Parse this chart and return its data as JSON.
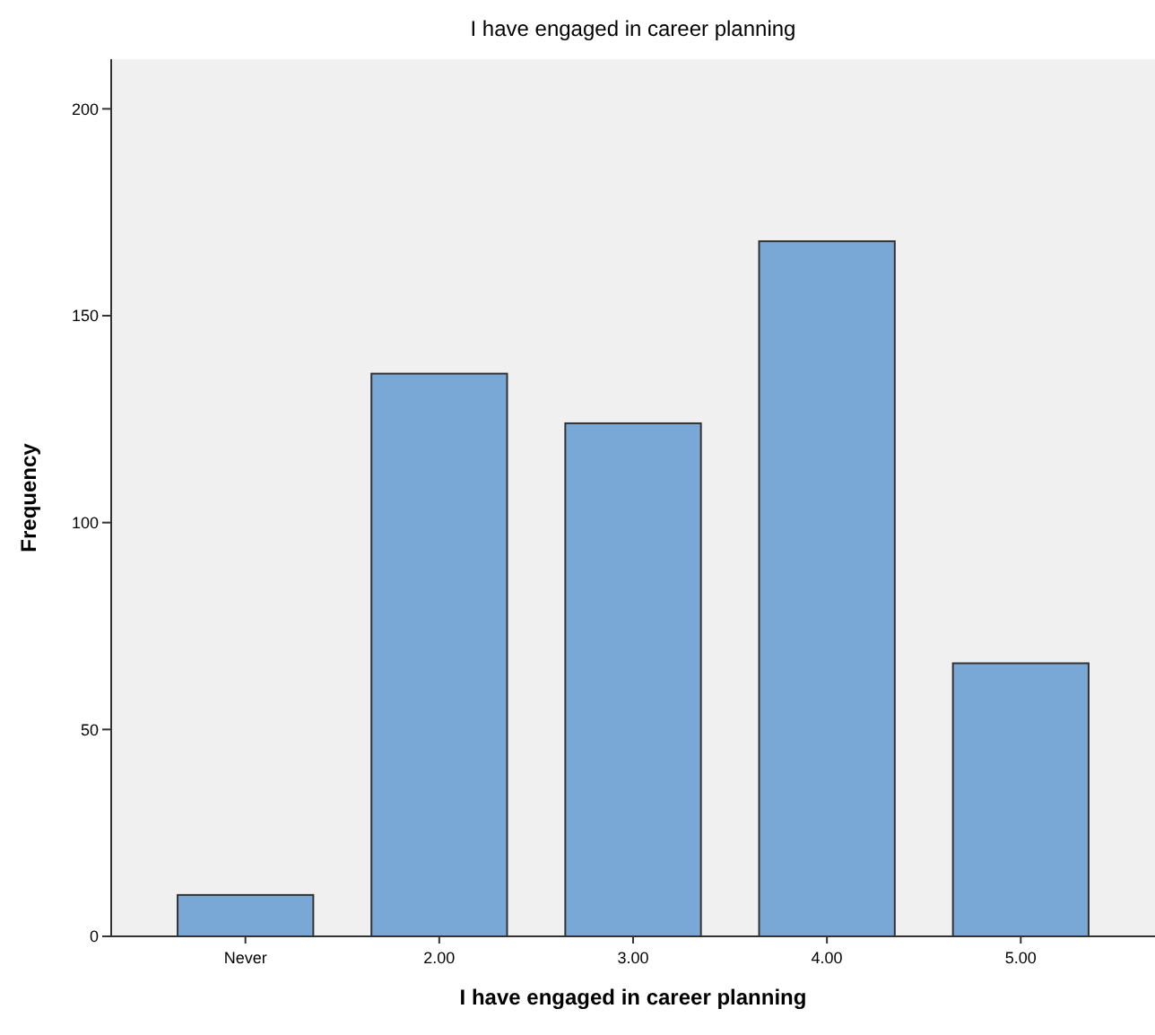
{
  "chart_data": {
    "type": "bar",
    "title": "I have engaged in career planning",
    "xlabel": "I have engaged in career planning",
    "ylabel": "Frequency",
    "categories": [
      "Never",
      "2.00",
      "3.00",
      "4.00",
      "5.00"
    ],
    "values": [
      10,
      136,
      124,
      168,
      66
    ],
    "color": "#79a8d6",
    "ylim": [
      0,
      212
    ],
    "yticks": [
      0,
      50,
      100,
      150,
      200
    ],
    "grid": false
  }
}
